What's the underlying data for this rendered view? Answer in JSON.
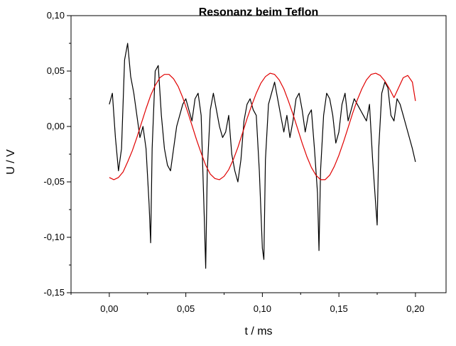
{
  "chart_data": {
    "type": "line",
    "title": "Resonanz beim Teflon",
    "xlabel": "t / ms",
    "ylabel": "U / V",
    "xlim": [
      -0.025,
      0.22
    ],
    "ylim": [
      -0.15,
      0.1
    ],
    "xticks": [
      0.0,
      0.05,
      0.1,
      0.15,
      0.2
    ],
    "xtick_labels": [
      "0,00",
      "0,05",
      "0,10",
      "0,15",
      "0,20"
    ],
    "yticks": [
      -0.15,
      -0.1,
      -0.05,
      0.0,
      0.05,
      0.1
    ],
    "ytick_labels": [
      "-0,15",
      "-0,10",
      "-0,05",
      "0,00",
      "0,05",
      "0,10"
    ],
    "grid": false,
    "series": [
      {
        "color": "#000000",
        "x": [
          0.0,
          0.002,
          0.004,
          0.006,
          0.008,
          0.01,
          0.012,
          0.014,
          0.016,
          0.018,
          0.02,
          0.022,
          0.024,
          0.026,
          0.027,
          0.028,
          0.03,
          0.032,
          0.034,
          0.036,
          0.038,
          0.04,
          0.042,
          0.044,
          0.046,
          0.048,
          0.05,
          0.052,
          0.054,
          0.056,
          0.058,
          0.06,
          0.062,
          0.063,
          0.064,
          0.066,
          0.068,
          0.07,
          0.072,
          0.074,
          0.076,
          0.078,
          0.08,
          0.082,
          0.084,
          0.086,
          0.088,
          0.09,
          0.092,
          0.094,
          0.096,
          0.098,
          0.1,
          0.101,
          0.102,
          0.104,
          0.106,
          0.108,
          0.11,
          0.112,
          0.114,
          0.116,
          0.118,
          0.12,
          0.122,
          0.124,
          0.126,
          0.128,
          0.13,
          0.132,
          0.134,
          0.136,
          0.137,
          0.138,
          0.14,
          0.142,
          0.144,
          0.146,
          0.148,
          0.15,
          0.152,
          0.154,
          0.156,
          0.158,
          0.16,
          0.162,
          0.164,
          0.166,
          0.168,
          0.17,
          0.172,
          0.174,
          0.175,
          0.176,
          0.178,
          0.18,
          0.182,
          0.184,
          0.186,
          0.188,
          0.19,
          0.192,
          0.194,
          0.196,
          0.198,
          0.2
        ],
        "y": [
          0.02,
          0.03,
          -0.01,
          -0.04,
          -0.02,
          0.06,
          0.075,
          0.045,
          0.03,
          0.01,
          -0.01,
          0.0,
          -0.02,
          -0.07,
          -0.105,
          -0.02,
          0.05,
          0.055,
          0.01,
          -0.02,
          -0.035,
          -0.04,
          -0.02,
          0.0,
          0.01,
          0.02,
          0.025,
          0.015,
          0.005,
          0.025,
          0.03,
          0.01,
          -0.08,
          -0.128,
          -0.04,
          0.015,
          0.03,
          0.015,
          0.0,
          -0.01,
          -0.005,
          0.01,
          -0.025,
          -0.04,
          -0.05,
          -0.03,
          0.005,
          0.02,
          0.025,
          0.015,
          0.01,
          -0.04,
          -0.11,
          -0.12,
          -0.03,
          0.02,
          0.03,
          0.04,
          0.025,
          0.01,
          -0.005,
          0.01,
          -0.01,
          0.005,
          0.025,
          0.03,
          0.015,
          -0.005,
          0.01,
          0.015,
          -0.02,
          -0.06,
          -0.112,
          -0.04,
          0.01,
          0.03,
          0.025,
          0.01,
          -0.015,
          -0.005,
          0.02,
          0.03,
          0.005,
          0.015,
          0.025,
          0.02,
          0.015,
          0.01,
          0.005,
          0.02,
          -0.03,
          -0.07,
          -0.089,
          -0.02,
          0.03,
          0.04,
          0.035,
          0.01,
          0.005,
          0.025,
          0.02,
          0.01,
          0.0,
          -0.01,
          -0.02,
          -0.032
        ]
      },
      {
        "color": "#e00000",
        "x": [
          0.0,
          0.003,
          0.006,
          0.009,
          0.012,
          0.015,
          0.018,
          0.021,
          0.024,
          0.027,
          0.03,
          0.033,
          0.036,
          0.039,
          0.042,
          0.045,
          0.048,
          0.051,
          0.054,
          0.057,
          0.06,
          0.063,
          0.066,
          0.069,
          0.072,
          0.075,
          0.078,
          0.081,
          0.084,
          0.087,
          0.09,
          0.093,
          0.096,
          0.099,
          0.102,
          0.105,
          0.108,
          0.111,
          0.114,
          0.117,
          0.12,
          0.123,
          0.126,
          0.129,
          0.132,
          0.135,
          0.138,
          0.141,
          0.144,
          0.147,
          0.15,
          0.153,
          0.156,
          0.159,
          0.162,
          0.165,
          0.168,
          0.171,
          0.174,
          0.177,
          0.18,
          0.183,
          0.186,
          0.189,
          0.192,
          0.195,
          0.198,
          0.2
        ],
        "y": [
          -0.046,
          -0.048,
          -0.046,
          -0.041,
          -0.032,
          -0.022,
          -0.01,
          0.003,
          0.016,
          0.028,
          0.037,
          0.044,
          0.047,
          0.047,
          0.043,
          0.036,
          0.026,
          0.014,
          0.001,
          -0.012,
          -0.024,
          -0.035,
          -0.043,
          -0.047,
          -0.048,
          -0.045,
          -0.039,
          -0.03,
          -0.019,
          -0.006,
          0.007,
          0.019,
          0.03,
          0.039,
          0.045,
          0.048,
          0.047,
          0.042,
          0.034,
          0.023,
          0.011,
          -0.002,
          -0.015,
          -0.027,
          -0.037,
          -0.044,
          -0.048,
          -0.048,
          -0.044,
          -0.036,
          -0.026,
          -0.014,
          -0.001,
          0.012,
          0.024,
          0.034,
          0.042,
          0.047,
          0.048,
          0.046,
          0.041,
          0.034,
          0.026,
          0.035,
          0.044,
          0.046,
          0.04,
          0.023
        ]
      }
    ]
  }
}
